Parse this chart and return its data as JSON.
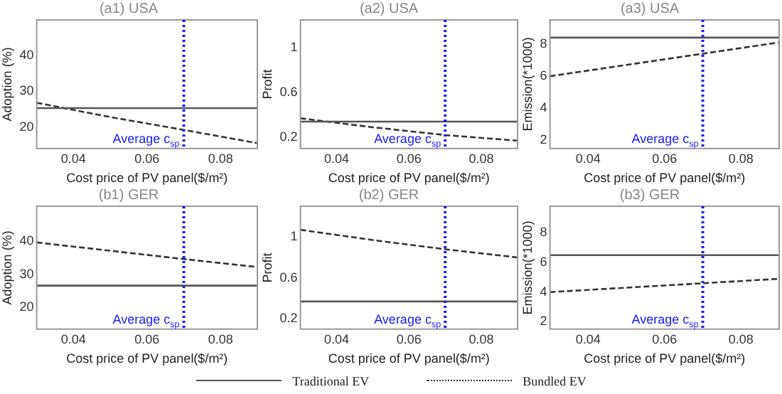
{
  "chart_data": [
    {
      "type": "line",
      "title": "(a1) USA",
      "xlabel": "Cost price of PV panel($/m²)",
      "ylabel": "Adoption (%)",
      "x": [
        0.03,
        0.05,
        0.07,
        0.09
      ],
      "xlim": [
        0.03,
        0.09
      ],
      "xticks": [
        0.04,
        0.06,
        0.08
      ],
      "ylim": [
        14,
        50
      ],
      "yticks": [
        20,
        30,
        40
      ],
      "grid": false,
      "legend": "bottom",
      "series": [
        {
          "name": "Traditional EV",
          "color": "#555555",
          "line_style": "solid",
          "values": [
            25.3,
            25.3,
            25.3,
            25.3
          ]
        },
        {
          "name": "Bundled EV",
          "color": "#333333",
          "line_style": "dashed",
          "values": [
            26.8,
            22.8,
            19.2,
            15.5
          ]
        }
      ],
      "ref_lines": [
        {
          "axis": "x",
          "value": 0.07,
          "label": "Average c$_{sp}$",
          "color": "#1a1aff",
          "line_style": "dotted"
        }
      ]
    },
    {
      "type": "line",
      "title": "(a2) USA",
      "xlabel": "Cost price of PV panel($/m²)",
      "ylabel": "Profit",
      "x": [
        0.03,
        0.05,
        0.07,
        0.09
      ],
      "xlim": [
        0.03,
        0.09
      ],
      "xticks": [
        0.04,
        0.06,
        0.08
      ],
      "ylim": [
        0.1,
        1.25
      ],
      "yticks": [
        0.2,
        0.6,
        1
      ],
      "grid": false,
      "series": [
        {
          "color": "#555555",
          "line_style": "solid",
          "values": [
            0.34,
            0.34,
            0.34,
            0.34
          ]
        },
        {
          "color": "#333333",
          "line_style": "dashed",
          "values": [
            0.37,
            0.29,
            0.22,
            0.17
          ]
        }
      ],
      "ref_lines": [
        {
          "axis": "x",
          "value": 0.07,
          "label": "Average c$_{sp}$",
          "color": "#1a1aff",
          "line_style": "dotted"
        }
      ]
    },
    {
      "type": "line",
      "title": "(a3) USA",
      "xlabel": "Cost price of PV panel($/m²)",
      "ylabel": "Emission(*1000)",
      "x": [
        0.03,
        0.05,
        0.07,
        0.09
      ],
      "xlim": [
        0.03,
        0.09
      ],
      "xticks": [
        0.04,
        0.06,
        0.08
      ],
      "ylim": [
        1.5,
        9.5
      ],
      "yticks": [
        2,
        4,
        6,
        8
      ],
      "grid": false,
      "series": [
        {
          "color": "#555555",
          "line_style": "solid",
          "values": [
            8.4,
            8.4,
            8.4,
            8.4
          ]
        },
        {
          "color": "#333333",
          "line_style": "dashed",
          "values": [
            6.0,
            6.7,
            7.4,
            8.1
          ]
        }
      ],
      "ref_lines": [
        {
          "axis": "x",
          "value": 0.07,
          "label": "Average c$_{sp}$",
          "color": "#1a1aff",
          "line_style": "dotted"
        }
      ]
    },
    {
      "type": "line",
      "title": "(b1) GER",
      "xlabel": "Cost price of PV panel($/m²)",
      "ylabel": "Adoption (%)",
      "x": [
        0.03,
        0.05,
        0.07,
        0.09
      ],
      "xlim": [
        0.03,
        0.09
      ],
      "xticks": [
        0.04,
        0.06,
        0.08
      ],
      "ylim": [
        13.5,
        50.5
      ],
      "yticks": [
        20,
        30,
        40
      ],
      "grid": false,
      "series": [
        {
          "color": "#555555",
          "line_style": "solid",
          "values": [
            26.6,
            26.6,
            26.6,
            26.6
          ]
        },
        {
          "color": "#333333",
          "line_style": "dashed",
          "values": [
            39.6,
            37.1,
            34.6,
            32.2
          ]
        }
      ],
      "ref_lines": [
        {
          "axis": "x",
          "value": 0.07,
          "label": "Average c$_{sp}$",
          "color": "#1a1aff",
          "line_style": "dotted"
        }
      ]
    },
    {
      "type": "line",
      "title": "(b2) GER",
      "xlabel": "Cost price of PV panel($/m²)",
      "ylabel": "Profit",
      "x": [
        0.03,
        0.05,
        0.07,
        0.09
      ],
      "xlim": [
        0.03,
        0.09
      ],
      "xticks": [
        0.04,
        0.06,
        0.08
      ],
      "ylim": [
        0.1,
        1.3
      ],
      "yticks": [
        0.2,
        0.6,
        1
      ],
      "grid": false,
      "series": [
        {
          "color": "#555555",
          "line_style": "solid",
          "values": [
            0.37,
            0.37,
            0.37,
            0.37
          ]
        },
        {
          "color": "#333333",
          "line_style": "dashed",
          "values": [
            1.07,
            0.97,
            0.88,
            0.8
          ]
        }
      ],
      "ref_lines": [
        {
          "axis": "x",
          "value": 0.07,
          "label": "Average c$_{sp}$",
          "color": "#1a1aff",
          "line_style": "dotted"
        }
      ]
    },
    {
      "type": "line",
      "title": "(b3) GER",
      "xlabel": "Cost price of PV panel($/m²)",
      "ylabel": "Emission(*1000)",
      "x": [
        0.03,
        0.05,
        0.07,
        0.09
      ],
      "xlim": [
        0.03,
        0.09
      ],
      "xticks": [
        0.04,
        0.06,
        0.08
      ],
      "ylim": [
        1.5,
        9.8
      ],
      "yticks": [
        2,
        4,
        6,
        8
      ],
      "grid": false,
      "series": [
        {
          "color": "#555555",
          "line_style": "solid",
          "values": [
            6.5,
            6.5,
            6.5,
            6.5
          ]
        },
        {
          "color": "#333333",
          "line_style": "dashed",
          "values": [
            4.0,
            4.3,
            4.6,
            4.9
          ]
        }
      ],
      "ref_lines": [
        {
          "axis": "x",
          "value": 0.07,
          "label": "Average c$_{sp}$",
          "color": "#1a1aff",
          "line_style": "dotted"
        }
      ]
    }
  ]
}
